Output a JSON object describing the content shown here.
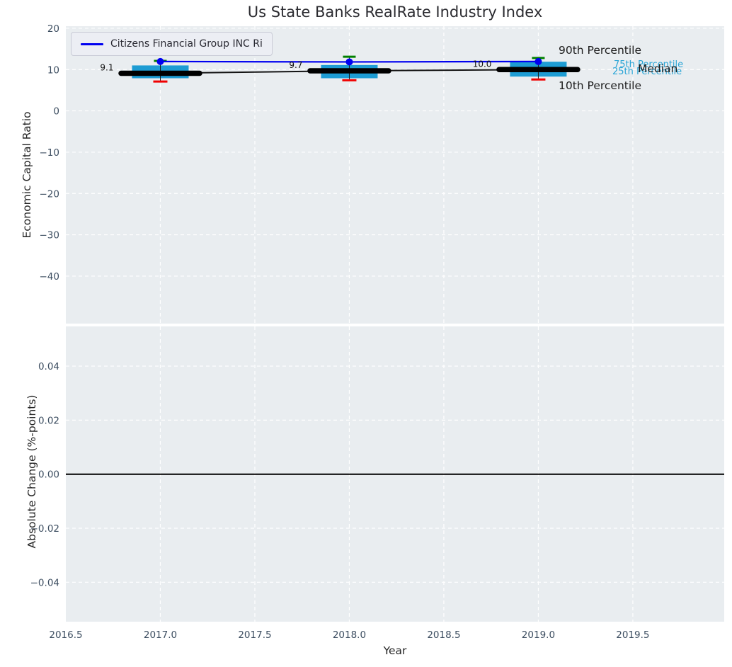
{
  "title": "Us State Banks RealRate Industry Index",
  "legend": {
    "label": "Citizens Financial Group INC Ri",
    "line_color": "#0000f0"
  },
  "annotations": {
    "p90": "90th Percentile",
    "p75": "75th Percentile",
    "p25": "25th Percentile",
    "median": "Median",
    "p10": "10th Percentile"
  },
  "axes": {
    "x": {
      "label": "Year",
      "ticks": [
        {
          "v": 2016.5,
          "t": "2016.5"
        },
        {
          "v": 2017.0,
          "t": "2017.0"
        },
        {
          "v": 2017.5,
          "t": "2017.5"
        },
        {
          "v": 2018.0,
          "t": "2018.0"
        },
        {
          "v": 2018.5,
          "t": "2018.5"
        },
        {
          "v": 2019.0,
          "t": "2019.0"
        },
        {
          "v": 2019.5,
          "t": "2019.5"
        }
      ]
    },
    "top": {
      "ylabel": "Economic Capital Ratio",
      "ticks": [
        {
          "v": 20,
          "t": "20"
        },
        {
          "v": 10,
          "t": "10"
        },
        {
          "v": 0,
          "t": "0"
        },
        {
          "v": -10,
          "t": "−10"
        },
        {
          "v": -20,
          "t": "−20"
        },
        {
          "v": -30,
          "t": "−30"
        },
        {
          "v": -40,
          "t": "−40"
        }
      ]
    },
    "bottom": {
      "ylabel": "Absolute Change (%-points)",
      "ticks": [
        {
          "v": 0.04,
          "t": "0.04"
        },
        {
          "v": 0.02,
          "t": "0.02"
        },
        {
          "v": 0.0,
          "t": "0.00"
        },
        {
          "v": -0.02,
          "t": "−0.02"
        },
        {
          "v": -0.04,
          "t": "−0.04"
        }
      ]
    }
  },
  "colors": {
    "axes_bg": "#e9edf0",
    "grid": "#ffffff",
    "box_fill": "#1d9cd3",
    "company_line": "#0000f0",
    "p90_cap": "#008000",
    "p10_cap": "#f00000",
    "median_line": "#000000",
    "tick_label": "#3d4e61",
    "percentile_text": "#2aa5d6"
  },
  "chart_data": [
    {
      "type": "box",
      "title": "Us State Banks RealRate Industry Index",
      "xlabel": "Year",
      "ylabel": "Economic Capital Ratio",
      "xlim": [
        2016.5,
        2019.9835
      ],
      "ylim": [
        -51.5,
        20.5
      ],
      "xticks": [
        2016.5,
        2017.0,
        2017.5,
        2018.0,
        2018.5,
        2019.0,
        2019.5
      ],
      "yticks": [
        20,
        10,
        0,
        -10,
        -20,
        -30,
        -40
      ],
      "grid": "white-dashed",
      "legend_position": "upper-left",
      "categories": [
        2017,
        2018,
        2019
      ],
      "boxes": [
        {
          "x": 2017,
          "p10": 7.1,
          "q1": 7.9,
          "median": 9.1,
          "q3": 11.0,
          "p90": 12.1,
          "label": "9.1"
        },
        {
          "x": 2018,
          "p10": 7.4,
          "q1": 7.9,
          "median": 9.7,
          "q3": 11.1,
          "p90": 13.1,
          "label": "9.7"
        },
        {
          "x": 2019,
          "p10": 7.6,
          "q1": 8.3,
          "median": 10.0,
          "q3": 11.9,
          "p90": 12.8,
          "label": "10.0"
        }
      ],
      "series": [
        {
          "name": "Citizens Financial Group INC Ri",
          "x": [
            2017,
            2018,
            2019
          ],
          "y": [
            11.95,
            11.85,
            11.95
          ]
        }
      ]
    },
    {
      "type": "line",
      "xlabel": "Year",
      "ylabel": "Absolute Change (%-points)",
      "xlim": [
        2016.5,
        2019.9835
      ],
      "ylim": [
        -0.0546,
        0.0547
      ],
      "yticks": [
        0.04,
        0.02,
        0.0,
        -0.02,
        -0.04
      ],
      "grid": "white-dashed",
      "zero_line": 0.0,
      "series": []
    }
  ]
}
